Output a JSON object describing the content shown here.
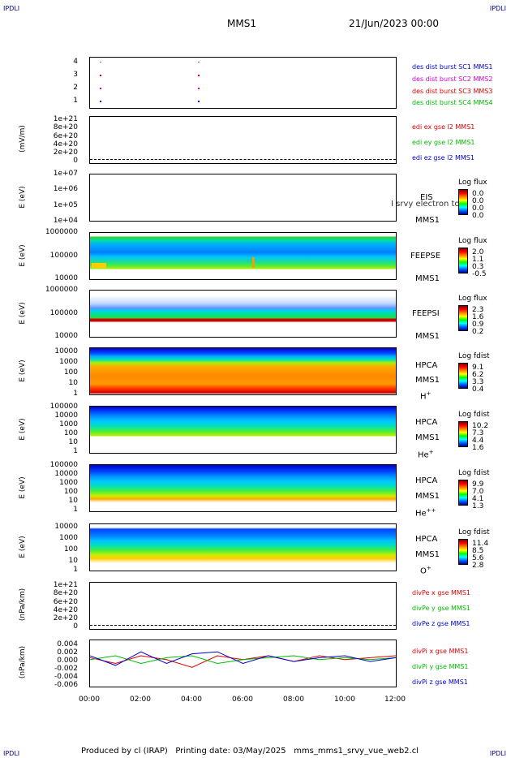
{
  "corners": {
    "tl": "IPDLI",
    "tr": "IPDLI",
    "bl": "IPDLI",
    "br": "IPDLI"
  },
  "header": {
    "spacecraft": "MMS1",
    "date": "21/Jun/2023 00:00"
  },
  "footer": {
    "text": "Produced by cl (IRAP)   Printing date: 03/May/2025   mms_mms1_srvy_vue_web2.cl"
  },
  "xaxis": {
    "labels": [
      "00:00",
      "02:00",
      "04:00",
      "06:00",
      "08:00",
      "10:00",
      "12:00"
    ]
  },
  "colors": {
    "red": "#dd0000",
    "green": "#00bb00",
    "blue": "#0000cc",
    "magenta": "#cc00cc"
  },
  "panels": {
    "burst": {
      "ticks": [
        "4",
        "3",
        "2",
        "1"
      ],
      "legend": [
        "des dist burst SC1 MMS1",
        "des dist burst SC2 MMS2",
        "des dist burst SC3 MMS3",
        "des dist burst SC4 MMS4"
      ]
    },
    "edi": {
      "ylabel": "(mV/m)",
      "ticks": [
        "1e+21",
        "8e+20",
        "6e+20",
        "4e+20",
        "2e+20",
        "0"
      ],
      "legend": [
        "edi ex gse l2 MMS1",
        "edi ey gse l2 MMS1",
        "edi ez gse l2 MMS1"
      ]
    },
    "eis": {
      "ylabel": "E (eV)",
      "ticks": [
        "1e+07",
        "1e+06",
        "1e+05",
        "1e+04"
      ],
      "inst": "EIS",
      "sc": "MMS1",
      "overlay": "I srvy electron to",
      "cb_title": "Log flux",
      "cb": [
        "0.0",
        "0.0",
        "0.0",
        "0.0"
      ]
    },
    "feepse": {
      "ylabel": "E (eV)",
      "ticks": [
        "1000000",
        "100000",
        "10000"
      ],
      "inst": "FEEPSE",
      "sc": "MMS1",
      "cb_title": "Log flux",
      "cb": [
        "2.0",
        "1.1",
        "0.3",
        "-0.5"
      ]
    },
    "feepsi": {
      "ylabel": "E (eV)",
      "ticks": [
        "1000000",
        "100000",
        "10000"
      ],
      "inst": "FEEPSI",
      "sc": "MMS1",
      "cb_title": "Log flux",
      "cb": [
        "2.3",
        "1.6",
        "0.9",
        "0.2"
      ]
    },
    "hplus": {
      "ylabel": "E (eV)",
      "ticks": [
        "10000",
        "1000",
        "100",
        "10",
        "1"
      ],
      "inst": "HPCA",
      "sc": "MMS1",
      "ion": "H",
      "ionsup": "+",
      "cb_title": "Log fdist",
      "cb": [
        "9.1",
        "6.2",
        "3.3",
        "0.4"
      ]
    },
    "heplus": {
      "ylabel": "E (eV)",
      "ticks": [
        "100000",
        "10000",
        "1000",
        "100",
        "10",
        "1"
      ],
      "inst": "HPCA",
      "sc": "MMS1",
      "ion": "He",
      "ionsup": "+",
      "cb_title": "Log fdist",
      "cb": [
        "10.2",
        "7.3",
        "4.4",
        "1.6"
      ]
    },
    "heplusplus": {
      "ylabel": "E (eV)",
      "ticks": [
        "100000",
        "10000",
        "1000",
        "100",
        "10",
        "1"
      ],
      "inst": "HPCA",
      "sc": "MMS1",
      "ion": "He",
      "ionsup": "++",
      "cb_title": "Log fdist",
      "cb": [
        "9.9",
        "7.0",
        "4.1",
        "1.3"
      ]
    },
    "oplus": {
      "ylabel": "E (eV)",
      "ticks": [
        "10000",
        "1000",
        "100",
        "10",
        "1"
      ],
      "inst": "HPCA",
      "sc": "MMS1",
      "ion": "O",
      "ionsup": "+",
      "cb_title": "Log fdist",
      "cb": [
        "11.4",
        "8.5",
        "5.6",
        "2.8"
      ]
    },
    "divpe": {
      "ylabel": "(nPa/km)",
      "ticks": [
        "1e+21",
        "8e+20",
        "6e+20",
        "4e+20",
        "2e+20",
        "0"
      ],
      "legend": [
        "divPe x gse MMS1",
        "divPe y gse MMS1",
        "divPe z gse MMS1"
      ]
    },
    "divpi": {
      "ylabel": "(nPa/km)",
      "ticks": [
        "0.004",
        "0.002",
        "0.000",
        "-0.002",
        "-0.004",
        "-0.006"
      ],
      "legend": [
        "divPi x gse MMS1",
        "divPi y gse MMS1",
        "divPi z gse MMS1"
      ]
    }
  },
  "chart_data": {
    "type": "heatmap",
    "x_range": [
      "00:00",
      "12:00"
    ],
    "series_lines": [
      {
        "name": "divPi x gse MMS1",
        "values": [
          0.0005,
          -0.001,
          0.001,
          0.0,
          -0.002,
          0.001,
          0.0,
          0.001,
          -0.0005,
          0.001,
          0.0,
          0.0005,
          0.001
        ]
      },
      {
        "name": "divPi y gse MMS1",
        "values": [
          0.0,
          0.001,
          -0.001,
          0.0005,
          0.001,
          -0.001,
          0.0,
          0.0005,
          0.001,
          0.0,
          0.0005,
          0.0,
          0.0005
        ]
      },
      {
        "name": "divPi z gse MMS1",
        "values": [
          0.001,
          -0.0015,
          0.002,
          -0.001,
          0.0015,
          0.002,
          -0.001,
          0.001,
          -0.0005,
          0.0005,
          0.001,
          -0.0005,
          0.0005
        ]
      }
    ],
    "burst_markers": [
      {
        "sc": "MMS1",
        "t": [
          "00:15",
          "04:15"
        ]
      }
    ]
  }
}
